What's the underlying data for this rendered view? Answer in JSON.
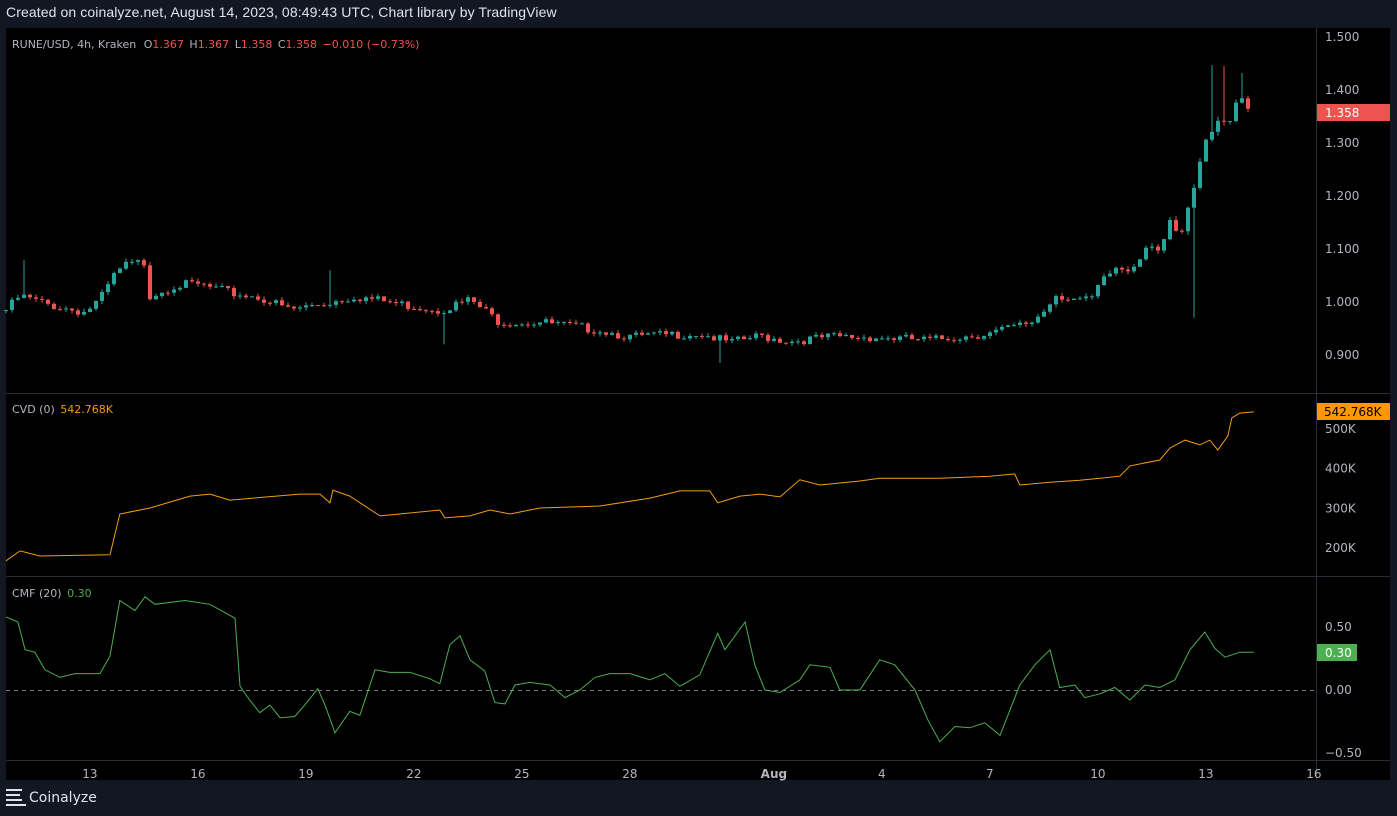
{
  "caption": "Created on coinalyze.net, August 14, 2023, 08:49:43 UTC, Chart library by TradingView",
  "brand": "Coinalyze",
  "colors": {
    "up": "#26a69a",
    "down": "#ef5350",
    "cvd": "#f39c12",
    "cmf": "#4caf50",
    "text": "#b2b5be",
    "grid": "#2a2e39"
  },
  "legend": {
    "symbol": "RUNE/USD, 4h, Kraken",
    "o_label": "O",
    "o": "1.367",
    "h_label": "H",
    "h": "1.367",
    "l_label": "L",
    "l": "1.358",
    "c_label": "C",
    "c": "1.358",
    "change": "−0.010 (−0.73%)",
    "cvd_name": "CVD (0)",
    "cvd_value": "542.768K",
    "cmf_name": "CMF (20)",
    "cmf_value": "0.30"
  },
  "chart_data": [
    {
      "type": "candlestick",
      "title": "RUNE/USD, 4h, Kraken",
      "x_unit": "day (July numbering, Aug 1 = 32)",
      "ylim": [
        0.83,
        1.52
      ],
      "y_ticks": [
        "1.500",
        "1.400",
        "1.300",
        "1.200",
        "1.100",
        "1.000",
        "0.900"
      ],
      "last_price_label": "1.358",
      "close_path": [
        [
          10.67,
          0.985
        ],
        [
          11.06,
          1.011
        ],
        [
          11.89,
          0.994
        ],
        [
          12.86,
          0.981
        ],
        [
          13.28,
          1.004
        ],
        [
          13.69,
          1.051
        ],
        [
          13.97,
          1.068
        ],
        [
          14.53,
          1.075
        ],
        [
          14.67,
          1.013
        ],
        [
          15.36,
          1.032
        ],
        [
          16.06,
          1.032
        ],
        [
          16.89,
          1.017
        ],
        [
          17.72,
          1.009
        ],
        [
          18.56,
          0.985
        ],
        [
          19.67,
          1.0
        ],
        [
          20.36,
          1.011
        ],
        [
          21.61,
          0.996
        ],
        [
          22.72,
          0.985
        ],
        [
          23.56,
          1.004
        ],
        [
          24.39,
          0.962
        ],
        [
          25.5,
          0.962
        ],
        [
          27.17,
          0.947
        ],
        [
          28.0,
          0.934
        ],
        [
          29.94,
          0.941
        ],
        [
          30.78,
          0.923
        ],
        [
          31.61,
          0.936
        ],
        [
          32.44,
          0.926
        ],
        [
          33.56,
          0.934
        ],
        [
          34.67,
          0.934
        ],
        [
          36.33,
          0.928
        ],
        [
          38.0,
          0.941
        ],
        [
          39.11,
          0.96
        ],
        [
          39.53,
          0.985
        ],
        [
          39.81,
          1.015
        ],
        [
          40.5,
          1.004
        ],
        [
          40.78,
          1.0
        ],
        [
          41.06,
          1.032
        ],
        [
          41.47,
          1.064
        ],
        [
          41.89,
          1.06
        ],
        [
          42.17,
          1.089
        ],
        [
          42.44,
          1.117
        ],
        [
          42.72,
          1.098
        ],
        [
          43.0,
          1.145
        ],
        [
          43.28,
          1.117
        ],
        [
          43.56,
          1.183
        ],
        [
          43.83,
          1.258
        ],
        [
          44.11,
          1.325
        ],
        [
          44.39,
          1.353
        ],
        [
          44.67,
          1.343
        ],
        [
          44.94,
          1.404
        ],
        [
          45.17,
          1.366
        ],
        [
          45.33,
          1.358
        ]
      ],
      "notable_wicks": [
        [
          11.1,
          "high",
          1.079
        ],
        [
          19.67,
          "high",
          1.06
        ],
        [
          22.8,
          "low",
          0.92
        ],
        [
          30.5,
          "low",
          0.885
        ],
        [
          43.75,
          "low",
          0.97
        ],
        [
          44.2,
          "high",
          1.447
        ],
        [
          44.45,
          "high",
          1.445
        ],
        [
          44.95,
          "high",
          1.432
        ]
      ]
    },
    {
      "type": "line",
      "title": "CVD (0)",
      "unit": "K",
      "ylim": [
        150,
        560
      ],
      "y_ticks": [
        "500K",
        "400K",
        "300K",
        "200K"
      ],
      "last_value_label": "542.768K",
      "points": [
        [
          10.67,
          168
        ],
        [
          11.06,
          193
        ],
        [
          11.61,
          180
        ],
        [
          13.56,
          183
        ],
        [
          13.83,
          286
        ],
        [
          14.67,
          301
        ],
        [
          15.78,
          331
        ],
        [
          16.33,
          336
        ],
        [
          16.89,
          321
        ],
        [
          18.83,
          336
        ],
        [
          19.39,
          336
        ],
        [
          19.67,
          314
        ],
        [
          19.75,
          346
        ],
        [
          20.22,
          331
        ],
        [
          21.06,
          281
        ],
        [
          21.61,
          286
        ],
        [
          22.72,
          296
        ],
        [
          22.86,
          276
        ],
        [
          23.56,
          281
        ],
        [
          24.11,
          296
        ],
        [
          24.67,
          286
        ],
        [
          25.5,
          301
        ],
        [
          27.17,
          306
        ],
        [
          28.56,
          326
        ],
        [
          29.39,
          344
        ],
        [
          30.22,
          344
        ],
        [
          30.44,
          314
        ],
        [
          31.06,
          331
        ],
        [
          31.61,
          336
        ],
        [
          32.17,
          329
        ],
        [
          32.72,
          372
        ],
        [
          33.28,
          359
        ],
        [
          34.39,
          369
        ],
        [
          34.94,
          376
        ],
        [
          36.61,
          376
        ],
        [
          38.0,
          381
        ],
        [
          38.69,
          387
        ],
        [
          38.83,
          359
        ],
        [
          39.67,
          366
        ],
        [
          40.5,
          371
        ],
        [
          41.06,
          376
        ],
        [
          41.61,
          381
        ],
        [
          41.89,
          407
        ],
        [
          42.72,
          422
        ],
        [
          43.0,
          452
        ],
        [
          43.42,
          472
        ],
        [
          43.83,
          460
        ],
        [
          44.11,
          472
        ],
        [
          44.33,
          447
        ],
        [
          44.61,
          482
        ],
        [
          44.72,
          528
        ],
        [
          44.94,
          540
        ],
        [
          45.33,
          543
        ]
      ]
    },
    {
      "type": "line",
      "title": "CMF (20)",
      "ylim": [
        -0.56,
        0.78
      ],
      "y_ticks": [
        "0.50",
        "0.00",
        "−0.50"
      ],
      "zero_line": "dashed",
      "last_value_label": "0.30",
      "points": [
        [
          10.67,
          0.58
        ],
        [
          11.0,
          0.54
        ],
        [
          11.2,
          0.32
        ],
        [
          11.47,
          0.3
        ],
        [
          11.75,
          0.16
        ],
        [
          12.17,
          0.1
        ],
        [
          12.58,
          0.13
        ],
        [
          13.28,
          0.13
        ],
        [
          13.56,
          0.27
        ],
        [
          13.83,
          0.71
        ],
        [
          14.25,
          0.63
        ],
        [
          14.53,
          0.74
        ],
        [
          14.81,
          0.68
        ],
        [
          15.64,
          0.71
        ],
        [
          16.33,
          0.68
        ],
        [
          17.03,
          0.57
        ],
        [
          17.17,
          0.03
        ],
        [
          17.44,
          -0.08
        ],
        [
          17.72,
          -0.18
        ],
        [
          18.0,
          -0.12
        ],
        [
          18.28,
          -0.22
        ],
        [
          18.69,
          -0.21
        ],
        [
          18.97,
          -0.12
        ],
        [
          19.33,
          0.01
        ],
        [
          19.53,
          -0.12
        ],
        [
          19.81,
          -0.34
        ],
        [
          20.22,
          -0.17
        ],
        [
          20.5,
          -0.2
        ],
        [
          20.92,
          0.16
        ],
        [
          21.33,
          0.14
        ],
        [
          21.89,
          0.14
        ],
        [
          22.44,
          0.09
        ],
        [
          22.72,
          0.05
        ],
        [
          23.0,
          0.36
        ],
        [
          23.28,
          0.43
        ],
        [
          23.56,
          0.24
        ],
        [
          23.97,
          0.15
        ],
        [
          24.25,
          -0.1
        ],
        [
          24.53,
          -0.11
        ],
        [
          24.81,
          0.04
        ],
        [
          25.22,
          0.06
        ],
        [
          25.78,
          0.04
        ],
        [
          26.2,
          -0.06
        ],
        [
          26.61,
          0.0
        ],
        [
          27.03,
          0.1
        ],
        [
          27.44,
          0.13
        ],
        [
          28.0,
          0.13
        ],
        [
          28.56,
          0.08
        ],
        [
          28.97,
          0.13
        ],
        [
          29.39,
          0.03
        ],
        [
          29.94,
          0.12
        ],
        [
          30.44,
          0.45
        ],
        [
          30.64,
          0.32
        ],
        [
          31.2,
          0.54
        ],
        [
          31.47,
          0.2
        ],
        [
          31.75,
          0.0
        ],
        [
          32.17,
          -0.02
        ],
        [
          32.72,
          0.08
        ],
        [
          33.0,
          0.2
        ],
        [
          33.56,
          0.18
        ],
        [
          33.83,
          0.0
        ],
        [
          34.39,
          0.0
        ],
        [
          34.94,
          0.24
        ],
        [
          35.36,
          0.2
        ],
        [
          35.92,
          0.0
        ],
        [
          36.28,
          -0.24
        ],
        [
          36.61,
          -0.41
        ],
        [
          37.03,
          -0.29
        ],
        [
          37.44,
          -0.3
        ],
        [
          37.86,
          -0.26
        ],
        [
          38.28,
          -0.36
        ],
        [
          38.83,
          0.04
        ],
        [
          39.25,
          0.2
        ],
        [
          39.67,
          0.32
        ],
        [
          39.94,
          0.02
        ],
        [
          40.36,
          0.04
        ],
        [
          40.64,
          -0.06
        ],
        [
          41.06,
          -0.03
        ],
        [
          41.47,
          0.02
        ],
        [
          41.89,
          -0.08
        ],
        [
          42.31,
          0.04
        ],
        [
          42.72,
          0.02
        ],
        [
          43.14,
          0.08
        ],
        [
          43.56,
          0.32
        ],
        [
          43.97,
          0.46
        ],
        [
          44.25,
          0.33
        ],
        [
          44.53,
          0.26
        ],
        [
          44.94,
          0.3
        ],
        [
          45.33,
          0.3
        ]
      ]
    }
  ],
  "time_axis": [
    {
      "label": "13",
      "day": 13
    },
    {
      "label": "16",
      "day": 16
    },
    {
      "label": "19",
      "day": 19
    },
    {
      "label": "22",
      "day": 22
    },
    {
      "label": "25",
      "day": 25
    },
    {
      "label": "28",
      "day": 28
    },
    {
      "label": "Aug",
      "day": 32,
      "bold": true
    },
    {
      "label": "4",
      "day": 35
    },
    {
      "label": "7",
      "day": 38
    },
    {
      "label": "10",
      "day": 41
    },
    {
      "label": "13",
      "day": 44
    },
    {
      "label": "16",
      "day": 47
    }
  ]
}
